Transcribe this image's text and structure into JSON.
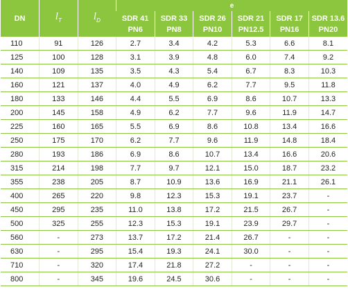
{
  "table": {
    "header": {
      "dn": "DN",
      "lt": {
        "symbol": "l",
        "subscript": "T"
      },
      "ld": {
        "symbol": "l",
        "subscript": "D"
      },
      "group": "e",
      "columns": [
        [
          "SDR 41",
          "PN6"
        ],
        [
          "SDR 33",
          "PN8"
        ],
        [
          "SDR 26",
          "PN10"
        ],
        [
          "SDR 21",
          "PN12.5"
        ],
        [
          "SDR 17",
          "PN16"
        ],
        [
          "SDR 13.6",
          "PN20"
        ]
      ]
    },
    "rows": [
      [
        "110",
        "91",
        "126",
        "2.7",
        "3.4",
        "4.2",
        "5.3",
        "6.6",
        "8.1"
      ],
      [
        "125",
        "100",
        "128",
        "3.1",
        "3.9",
        "4.8",
        "6.0",
        "7.4",
        "9.2"
      ],
      [
        "140",
        "109",
        "135",
        "3.5",
        "4.3",
        "5.4",
        "6.7",
        "8.3",
        "10.3"
      ],
      [
        "160",
        "121",
        "137",
        "4.0",
        "4.9",
        "6.2",
        "7.7",
        "9.5",
        "11.8"
      ],
      [
        "180",
        "133",
        "146",
        "4.4",
        "5.5",
        "6.9",
        "8.6",
        "10.7",
        "13.3"
      ],
      [
        "200",
        "145",
        "158",
        "4.9",
        "6.2",
        "7.7",
        "9.6",
        "11.9",
        "14.7"
      ],
      [
        "225",
        "160",
        "165",
        "5.5",
        "6.9",
        "8.6",
        "10.8",
        "13.4",
        "16.6"
      ],
      [
        "250",
        "175",
        "170",
        "6.2",
        "7.7",
        "9.6",
        "11.9",
        "14.8",
        "18.4"
      ],
      [
        "280",
        "193",
        "186",
        "6.9",
        "8.6",
        "10.7",
        "13.4",
        "16.6",
        "20.6"
      ],
      [
        "315",
        "214",
        "198",
        "7.7",
        "9.7",
        "12.1",
        "15.0",
        "18.7",
        "23.2"
      ],
      [
        "355",
        "238",
        "205",
        "8.7",
        "10.9",
        "13.6",
        "16.9",
        "21.1",
        "26.1"
      ],
      [
        "400",
        "265",
        "220",
        "9.8",
        "12.3",
        "15.3",
        "19.1",
        "23.7",
        "-"
      ],
      [
        "450",
        "295",
        "235",
        "11.0",
        "13.8",
        "17.2",
        "21.5",
        "26.7",
        "-"
      ],
      [
        "500",
        "325",
        "255",
        "12.3",
        "15.3",
        "19.1",
        "23.9",
        "29.7",
        "-"
      ],
      [
        "560",
        "-",
        "273",
        "13.7",
        "17.2",
        "21.4",
        "26.7",
        "-",
        "-"
      ],
      [
        "630",
        "-",
        "295",
        "15.4",
        "19.3",
        "24.1",
        "30.0",
        "-",
        "-"
      ],
      [
        "710",
        "-",
        "320",
        "17.4",
        "21.8",
        "27.2",
        "-",
        "-",
        "-"
      ],
      [
        "800",
        "-",
        "345",
        "19.6",
        "24.5",
        "30.6",
        "-",
        "-",
        "-"
      ]
    ]
  }
}
